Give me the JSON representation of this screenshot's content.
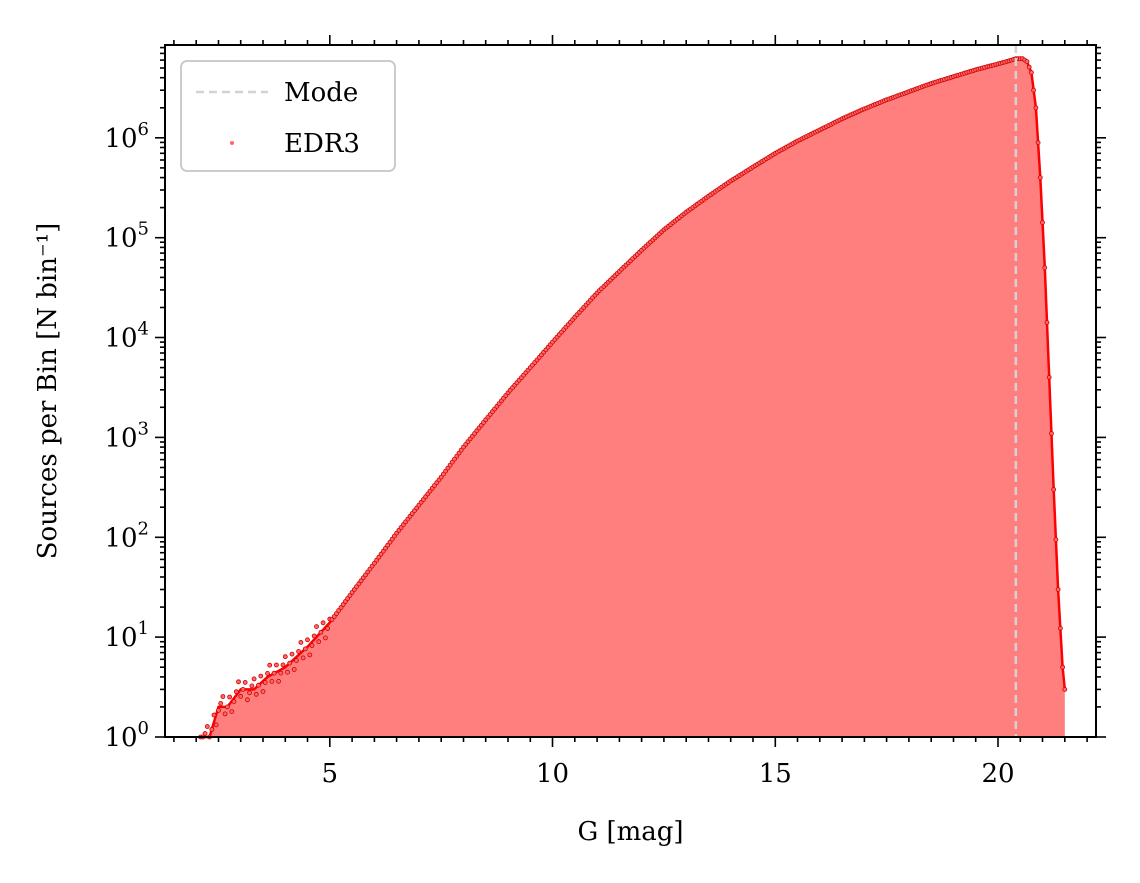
{
  "chart_data": {
    "type": "area",
    "xlabel": "G [mag]",
    "ylabel": "Sources per Bin [N bin⁻¹]",
    "xlim": [
      1.3,
      22.2
    ],
    "ylim": [
      1,
      8500000
    ],
    "yscale": "log",
    "grid": false,
    "legend_position": "top-left",
    "xticks": [
      5,
      10,
      15,
      20
    ],
    "xtick_labels": [
      "5",
      "10",
      "15",
      "20"
    ],
    "yticks": [
      1,
      10,
      100,
      1000,
      10000,
      100000,
      1000000
    ],
    "ytick_labels": [
      {
        "base": "10",
        "exp": "0"
      },
      {
        "base": "10",
        "exp": "1"
      },
      {
        "base": "10",
        "exp": "2"
      },
      {
        "base": "10",
        "exp": "3"
      },
      {
        "base": "10",
        "exp": "4"
      },
      {
        "base": "10",
        "exp": "5"
      },
      {
        "base": "10",
        "exp": "6"
      }
    ],
    "series": [
      {
        "name": "EDR3",
        "kind": "histogram-points",
        "color": "#ff0000",
        "fill_color": "#ff7f7f",
        "x": [
          2.1,
          2.3,
          2.5,
          2.7,
          3.0,
          3.3,
          3.6,
          4.0,
          4.5,
          5.0,
          5.5,
          6.0,
          6.5,
          7.0,
          7.5,
          8.0,
          8.5,
          9.0,
          9.5,
          10.0,
          10.5,
          11.0,
          11.5,
          12.0,
          12.5,
          13.0,
          13.5,
          14.0,
          14.5,
          15.0,
          15.5,
          16.0,
          16.5,
          17.0,
          17.5,
          18.0,
          18.5,
          19.0,
          19.5,
          20.0,
          20.25,
          20.4,
          20.55,
          20.65,
          20.75,
          20.85,
          20.95,
          21.05,
          21.15,
          21.25,
          21.35,
          21.45,
          21.5
        ],
        "y": [
          1,
          1,
          2,
          2,
          3,
          3,
          4,
          5,
          8,
          14,
          28,
          55,
          110,
          210,
          400,
          800,
          1500,
          2800,
          5000,
          9000,
          16000,
          28000,
          46000,
          75000,
          120000,
          180000,
          260000,
          370000,
          510000,
          700000,
          930000,
          1200000,
          1550000,
          1950000,
          2400000,
          2900000,
          3500000,
          4100000,
          4800000,
          5500000,
          5900000,
          6200000,
          6200000,
          5800000,
          4500000,
          2000000,
          400000,
          50000,
          4000,
          300,
          30,
          5,
          3
        ]
      }
    ],
    "annotations": [
      {
        "name": "Mode",
        "kind": "vline",
        "x": 20.4,
        "color": "#d3d3d3",
        "style": "dashed"
      }
    ]
  }
}
